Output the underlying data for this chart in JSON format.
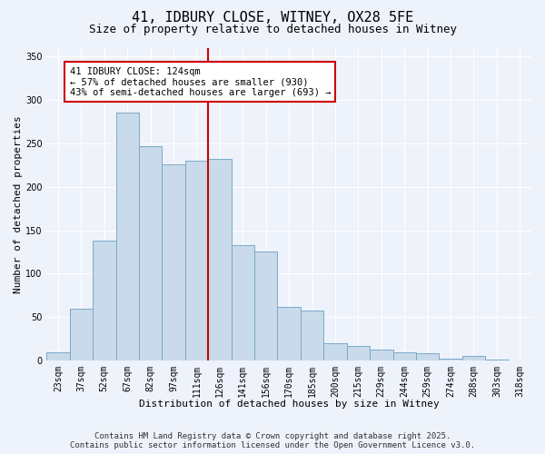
{
  "title": "41, IDBURY CLOSE, WITNEY, OX28 5FE",
  "subtitle": "Size of property relative to detached houses in Witney",
  "xlabel": "Distribution of detached houses by size in Witney",
  "ylabel": "Number of detached properties",
  "bar_labels": [
    "23sqm",
    "37sqm",
    "52sqm",
    "67sqm",
    "82sqm",
    "97sqm",
    "111sqm",
    "126sqm",
    "141sqm",
    "156sqm",
    "170sqm",
    "185sqm",
    "200sqm",
    "215sqm",
    "229sqm",
    "244sqm",
    "259sqm",
    "274sqm",
    "288sqm",
    "303sqm",
    "318sqm"
  ],
  "bar_values": [
    10,
    60,
    138,
    285,
    247,
    226,
    230,
    232,
    133,
    125,
    62,
    58,
    20,
    17,
    13,
    9,
    8,
    2,
    5,
    1,
    0
  ],
  "bar_color": "#c9daea",
  "bar_edge_color": "#7aaac8",
  "vline_index": 7,
  "vline_color": "#cc0000",
  "annotation_text": "41 IDBURY CLOSE: 124sqm\n← 57% of detached houses are smaller (930)\n43% of semi-detached houses are larger (693) →",
  "annotation_box_facecolor": "#ffffff",
  "annotation_box_edgecolor": "#cc0000",
  "ylim": [
    0,
    360
  ],
  "yticks": [
    0,
    50,
    100,
    150,
    200,
    250,
    300,
    350
  ],
  "background_color": "#eef2fb",
  "footer_line1": "Contains HM Land Registry data © Crown copyright and database right 2025.",
  "footer_line2": "Contains public sector information licensed under the Open Government Licence v3.0.",
  "title_fontsize": 11,
  "subtitle_fontsize": 9,
  "axis_label_fontsize": 8,
  "tick_fontsize": 7,
  "annotation_fontsize": 7.5,
  "footer_fontsize": 6.5
}
